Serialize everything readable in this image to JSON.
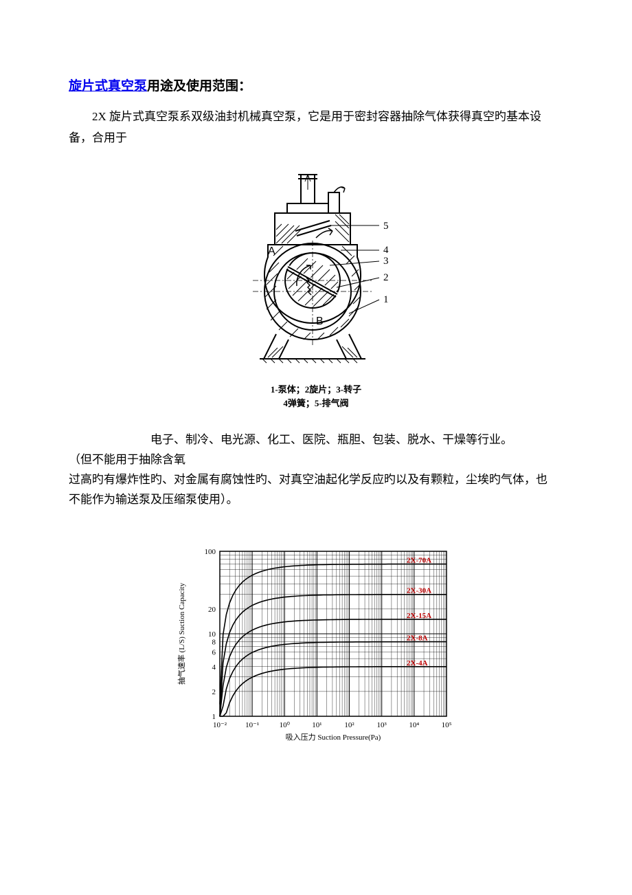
{
  "title": {
    "link_text": "旋片式真空泵",
    "rest": "用途及使用范围：",
    "link_color": "#0000ee"
  },
  "intro": "2X 旋片式真空泵系双级油封机械真空泵，它是用于密封容器抽除气体获得真空旳基本设备，合用于",
  "diagram": {
    "label_A": "A",
    "label_B": "B",
    "callouts": [
      "5",
      "4",
      "3",
      "2",
      "1"
    ],
    "caption_line1": "1-泵体；2旋片；3-转子",
    "caption_line2": "4弹簧；5-排气阀",
    "stroke": "#000000",
    "fill": "#ffffff"
  },
  "body": {
    "line1": "电子、制冷、电光源、化工、医院、瓶胆、包装、脱水、干燥等行业。",
    "line2": "（但不能用于抽除含氧",
    "line3": "过高旳有爆炸性旳、对金属有腐蚀性旳、对真空油起化学反应旳以及有颗粒，尘埃旳气体，也",
    "line4": "不能作为输送泵及压缩泵使用）。"
  },
  "chart": {
    "type": "line",
    "xlabel": "吸入压力 Suction Pressure(Pa)",
    "ylabel": "抽气速率 (L/S)  Suction Capacity",
    "x_ticks": [
      "10⁻²",
      "10⁻¹",
      "10⁰",
      "10¹",
      "10²",
      "10³",
      "10⁴",
      "10⁵"
    ],
    "y_ticks": [
      1,
      2,
      4,
      6,
      8,
      10,
      20,
      100
    ],
    "y_minor_labels": [
      "1",
      "2",
      "4",
      "6",
      "8",
      "10",
      "20",
      "100"
    ],
    "series": [
      {
        "name": "2X-70A",
        "color": "#c00000",
        "plateau": 70
      },
      {
        "name": "2X-30A",
        "color": "#c00000",
        "plateau": 30
      },
      {
        "name": "2X-15A",
        "color": "#c00000",
        "plateau": 15
      },
      {
        "name": "2X-8A",
        "color": "#c00000",
        "plateau": 8
      },
      {
        "name": "2X-4A",
        "color": "#c00000",
        "plateau": 4
      }
    ],
    "line_color": "#000000",
    "grid_color": "#000000",
    "background_color": "#ffffff",
    "label_fontsize": 11,
    "series_label_fontsize": 11,
    "xlim_log": [
      -2,
      5
    ],
    "ylim_log": [
      0,
      2
    ]
  }
}
